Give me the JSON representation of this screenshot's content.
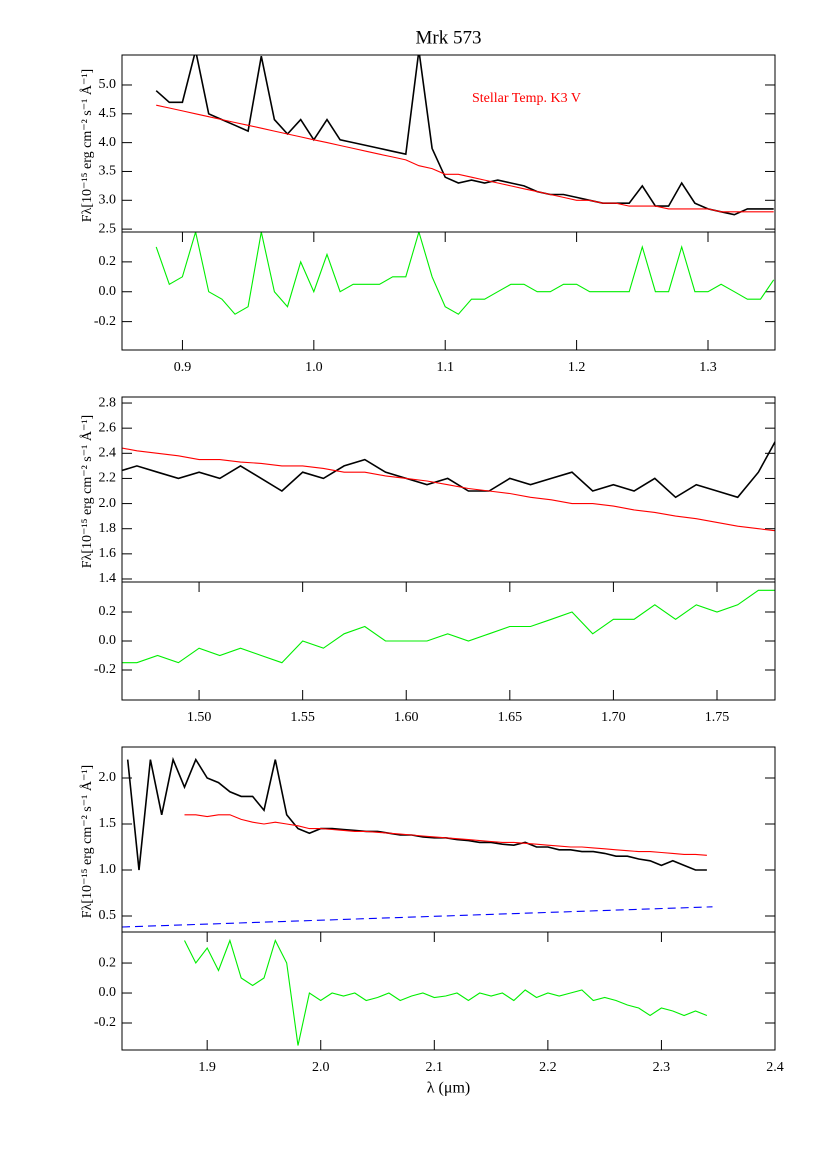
{
  "chart_data": [
    {
      "type": "line",
      "title": "Mrk 573",
      "y_label": "Fλ[10⁻¹⁵ erg cm⁻² s⁻¹ Å⁻¹]",
      "x": [
        0.88,
        0.89,
        0.9,
        0.91,
        0.92,
        0.93,
        0.94,
        0.95,
        0.96,
        0.97,
        0.98,
        0.99,
        1.0,
        1.01,
        1.02,
        1.03,
        1.04,
        1.05,
        1.06,
        1.07,
        1.08,
        1.09,
        1.1,
        1.11,
        1.12,
        1.13,
        1.14,
        1.15,
        1.16,
        1.17,
        1.18,
        1.19,
        1.2,
        1.21,
        1.22,
        1.23,
        1.24,
        1.25,
        1.26,
        1.27,
        1.28,
        1.29,
        1.3,
        1.31,
        1.32,
        1.33,
        1.34,
        1.35
      ],
      "series": [
        {
          "color": "#000000",
          "values": [
            4.9,
            4.7,
            4.7,
            5.6,
            4.5,
            4.4,
            4.3,
            4.2,
            5.5,
            4.4,
            4.15,
            4.4,
            4.05,
            4.4,
            4.05,
            4.0,
            3.95,
            3.9,
            3.85,
            3.8,
            5.6,
            3.9,
            3.4,
            3.3,
            3.35,
            3.3,
            3.35,
            3.3,
            3.25,
            3.15,
            3.1,
            3.1,
            3.05,
            3.0,
            2.95,
            2.95,
            2.95,
            3.25,
            2.9,
            2.9,
            3.3,
            2.95,
            2.85,
            2.8,
            2.75,
            2.85,
            2.85,
            2.85
          ]
        },
        {
          "name": "Stellar Temp. K3 V",
          "color": "#ff0000",
          "values": [
            4.65,
            4.6,
            4.55,
            4.5,
            4.45,
            4.4,
            4.35,
            4.3,
            4.25,
            4.2,
            4.15,
            4.1,
            4.05,
            4.0,
            3.95,
            3.9,
            3.85,
            3.8,
            3.75,
            3.7,
            3.6,
            3.55,
            3.45,
            3.45,
            3.4,
            3.35,
            3.3,
            3.25,
            3.2,
            3.15,
            3.1,
            3.05,
            3.0,
            3.0,
            2.95,
            2.95,
            2.9,
            2.9,
            2.9,
            2.85,
            2.85,
            2.85,
            2.85,
            2.8,
            2.8,
            2.8,
            2.8,
            2.8
          ]
        }
      ],
      "xlim": [
        0.854,
        1.351
      ],
      "ylim": [
        2.45,
        5.52
      ],
      "yticks": [
        2.5,
        {
          "value": 3,
          "label": "3.0"
        },
        3.5,
        {
          "value": 4,
          "label": "4.0"
        },
        4.5,
        {
          "value": 5,
          "label": "5.0"
        }
      ]
    },
    {
      "type": "line",
      "x": [
        0.88,
        0.89,
        0.9,
        0.91,
        0.92,
        0.93,
        0.94,
        0.95,
        0.96,
        0.97,
        0.98,
        0.99,
        1.0,
        1.01,
        1.02,
        1.03,
        1.04,
        1.05,
        1.06,
        1.07,
        1.08,
        1.09,
        1.1,
        1.11,
        1.12,
        1.13,
        1.14,
        1.15,
        1.16,
        1.17,
        1.18,
        1.19,
        1.2,
        1.21,
        1.22,
        1.23,
        1.24,
        1.25,
        1.26,
        1.27,
        1.28,
        1.29,
        1.3,
        1.31,
        1.32,
        1.33,
        1.34,
        1.35
      ],
      "series": [
        {
          "color": "#00ee00",
          "values": [
            0.3,
            0.05,
            0.1,
            0.4,
            0.0,
            -0.05,
            -0.15,
            -0.1,
            0.4,
            0.0,
            -0.1,
            0.2,
            0.0,
            0.25,
            0.0,
            0.05,
            0.05,
            0.05,
            0.1,
            0.1,
            0.4,
            0.1,
            -0.1,
            -0.15,
            -0.05,
            -0.05,
            0.0,
            0.05,
            0.05,
            0.0,
            0.0,
            0.05,
            0.05,
            0.0,
            0.0,
            0.0,
            0.0,
            0.3,
            0.0,
            0.0,
            0.3,
            0.0,
            0.0,
            0.05,
            0.0,
            -0.05,
            -0.05,
            0.08
          ]
        }
      ],
      "xlim": [
        0.854,
        1.351
      ],
      "ylim": [
        -0.39,
        0.4
      ],
      "yticks": [
        -0.2,
        {
          "value": 0,
          "label": "0.0"
        },
        0.2
      ],
      "xticks": [
        0.9,
        {
          "value": 1,
          "label": "1.0"
        },
        1.1,
        1.2,
        1.3
      ]
    },
    {
      "type": "line",
      "y_label": "Fλ[10⁻¹⁵ erg cm⁻² s⁻¹ Å⁻¹]",
      "x": [
        1.46,
        1.47,
        1.48,
        1.49,
        1.5,
        1.51,
        1.52,
        1.53,
        1.54,
        1.55,
        1.56,
        1.57,
        1.58,
        1.59,
        1.6,
        1.61,
        1.62,
        1.63,
        1.64,
        1.65,
        1.66,
        1.67,
        1.68,
        1.69,
        1.7,
        1.71,
        1.72,
        1.73,
        1.74,
        1.75,
        1.76,
        1.77,
        1.78
      ],
      "series": [
        {
          "color": "#000000",
          "values": [
            2.25,
            2.3,
            2.25,
            2.2,
            2.25,
            2.2,
            2.3,
            2.2,
            2.1,
            2.25,
            2.2,
            2.3,
            2.35,
            2.25,
            2.2,
            2.15,
            2.2,
            2.1,
            2.1,
            2.2,
            2.15,
            2.2,
            2.25,
            2.1,
            2.15,
            2.1,
            2.2,
            2.05,
            2.15,
            2.1,
            2.05,
            2.25,
            2.55
          ]
        },
        {
          "color": "#ff0000",
          "values": [
            2.45,
            2.42,
            2.4,
            2.38,
            2.35,
            2.35,
            2.33,
            2.32,
            2.3,
            2.3,
            2.28,
            2.25,
            2.25,
            2.22,
            2.2,
            2.18,
            2.15,
            2.12,
            2.1,
            2.08,
            2.05,
            2.03,
            2.0,
            2.0,
            1.98,
            1.95,
            1.93,
            1.9,
            1.88,
            1.85,
            1.82,
            1.8,
            1.78
          ]
        }
      ],
      "xlim": [
        1.4628,
        1.778
      ],
      "ylim": [
        1.376,
        2.848
      ],
      "yticks": [
        1.4,
        1.6,
        1.8,
        {
          "value": 2,
          "label": "2.0"
        },
        2.2,
        2.4,
        2.6,
        2.8
      ]
    },
    {
      "type": "line",
      "x": [
        1.46,
        1.47,
        1.48,
        1.49,
        1.5,
        1.51,
        1.52,
        1.53,
        1.54,
        1.55,
        1.56,
        1.57,
        1.58,
        1.59,
        1.6,
        1.61,
        1.62,
        1.63,
        1.64,
        1.65,
        1.66,
        1.67,
        1.68,
        1.69,
        1.7,
        1.71,
        1.72,
        1.73,
        1.74,
        1.75,
        1.76,
        1.77,
        1.78
      ],
      "series": [
        {
          "color": "#00ee00",
          "values": [
            -0.15,
            -0.15,
            -0.1,
            -0.15,
            -0.05,
            -0.1,
            -0.05,
            -0.1,
            -0.15,
            0.0,
            -0.05,
            0.05,
            0.1,
            0.0,
            0.0,
            0.0,
            0.05,
            0.0,
            0.05,
            0.1,
            0.1,
            0.15,
            0.2,
            0.05,
            0.15,
            0.15,
            0.25,
            0.15,
            0.25,
            0.2,
            0.25,
            0.35,
            0.35
          ]
        }
      ],
      "xlim": [
        1.4628,
        1.778
      ],
      "ylim": [
        -0.407,
        0.407
      ],
      "yticks": [
        -0.2,
        {
          "value": 0,
          "label": "0.0"
        },
        0.2
      ],
      "xticks": [
        {
          "value": 1.5,
          "label": "1.50"
        },
        1.55,
        {
          "value": 1.6,
          "label": "1.60"
        },
        1.65,
        {
          "value": 1.7,
          "label": "1.70"
        },
        1.75
      ]
    },
    {
      "type": "line",
      "y_label": "Fλ[10⁻¹⁵ erg cm⁻² s⁻¹ Å⁻¹]",
      "x": [
        1.83,
        1.84,
        1.85,
        1.86,
        1.87,
        1.88,
        1.89,
        1.9,
        1.91,
        1.92,
        1.93,
        1.94,
        1.95,
        1.96,
        1.97,
        1.98,
        1.99,
        2.0,
        2.01,
        2.02,
        2.03,
        2.04,
        2.05,
        2.06,
        2.07,
        2.08,
        2.09,
        2.1,
        2.11,
        2.12,
        2.13,
        2.14,
        2.15,
        2.16,
        2.17,
        2.18,
        2.19,
        2.2,
        2.21,
        2.22,
        2.23,
        2.24,
        2.25,
        2.26,
        2.27,
        2.28,
        2.29,
        2.3,
        2.31,
        2.32,
        2.33,
        2.34
      ],
      "series": [
        {
          "color": "#000000",
          "values": [
            2.2,
            1.0,
            2.2,
            1.6,
            2.2,
            1.9,
            2.2,
            2.0,
            1.95,
            1.85,
            1.8,
            1.8,
            1.65,
            2.2,
            1.6,
            1.45,
            1.4,
            1.45,
            1.45,
            1.44,
            1.43,
            1.42,
            1.42,
            1.4,
            1.38,
            1.38,
            1.36,
            1.35,
            1.35,
            1.33,
            1.32,
            1.3,
            1.3,
            1.28,
            1.27,
            1.3,
            1.25,
            1.25,
            1.22,
            1.22,
            1.2,
            1.2,
            1.18,
            1.15,
            1.15,
            1.12,
            1.1,
            1.05,
            1.1,
            1.05,
            1.0,
            1.0
          ]
        },
        {
          "color": "#ff0000",
          "values": [
            null,
            null,
            null,
            null,
            null,
            1.6,
            1.6,
            1.58,
            1.6,
            1.6,
            1.55,
            1.52,
            1.5,
            1.52,
            1.5,
            1.48,
            1.45,
            1.45,
            1.44,
            1.43,
            1.42,
            1.42,
            1.41,
            1.4,
            1.39,
            1.38,
            1.37,
            1.36,
            1.35,
            1.34,
            1.33,
            1.32,
            1.31,
            1.3,
            1.3,
            1.29,
            1.28,
            1.27,
            1.26,
            1.25,
            1.25,
            1.24,
            1.23,
            1.22,
            1.21,
            1.2,
            1.2,
            1.19,
            1.18,
            1.17,
            1.17,
            1.16
          ]
        },
        {
          "color": "#0000ff",
          "dashed": true,
          "x": [
            1.825,
            2.345
          ],
          "values": [
            0.38,
            0.6
          ]
        }
      ],
      "xlim": [
        1.825,
        2.4
      ],
      "ylim": [
        0.326,
        2.337
      ],
      "yticks": [
        0.5,
        {
          "value": 1,
          "label": "1.0"
        },
        1.5,
        {
          "value": 2,
          "label": "2.0"
        }
      ]
    },
    {
      "type": "line",
      "x_label": "λ (μm)",
      "x": [
        1.83,
        1.84,
        1.85,
        1.86,
        1.87,
        1.88,
        1.89,
        1.9,
        1.91,
        1.92,
        1.93,
        1.94,
        1.95,
        1.96,
        1.97,
        1.98,
        1.99,
        2.0,
        2.01,
        2.02,
        2.03,
        2.04,
        2.05,
        2.06,
        2.07,
        2.08,
        2.09,
        2.1,
        2.11,
        2.12,
        2.13,
        2.14,
        2.15,
        2.16,
        2.17,
        2.18,
        2.19,
        2.2,
        2.21,
        2.22,
        2.23,
        2.24,
        2.25,
        2.26,
        2.27,
        2.28,
        2.29,
        2.3,
        2.31,
        2.32,
        2.33,
        2.34
      ],
      "series": [
        {
          "color": "#00ee00",
          "values": [
            null,
            null,
            null,
            null,
            null,
            0.35,
            0.2,
            0.3,
            0.15,
            0.35,
            0.1,
            0.05,
            0.1,
            0.35,
            0.2,
            -0.35,
            0.0,
            -0.05,
            0.0,
            -0.02,
            0.0,
            -0.05,
            -0.03,
            0.0,
            -0.05,
            -0.02,
            0.0,
            -0.03,
            -0.02,
            0.0,
            -0.05,
            0.0,
            -0.02,
            0.0,
            -0.05,
            0.02,
            -0.03,
            0.0,
            -0.02,
            0.0,
            0.02,
            -0.05,
            -0.03,
            -0.05,
            -0.08,
            -0.1,
            -0.15,
            -0.1,
            -0.12,
            -0.15,
            -0.12,
            -0.15
          ]
        }
      ],
      "xlim": [
        1.825,
        2.4
      ],
      "ylim": [
        -0.38,
        0.407
      ],
      "yticks": [
        -0.2,
        {
          "value": 0,
          "label": "0.0"
        },
        0.2
      ],
      "xticks": [
        1.9,
        {
          "value": 2,
          "label": "2.0"
        },
        2.1,
        2.2,
        2.3,
        2.4
      ]
    }
  ]
}
